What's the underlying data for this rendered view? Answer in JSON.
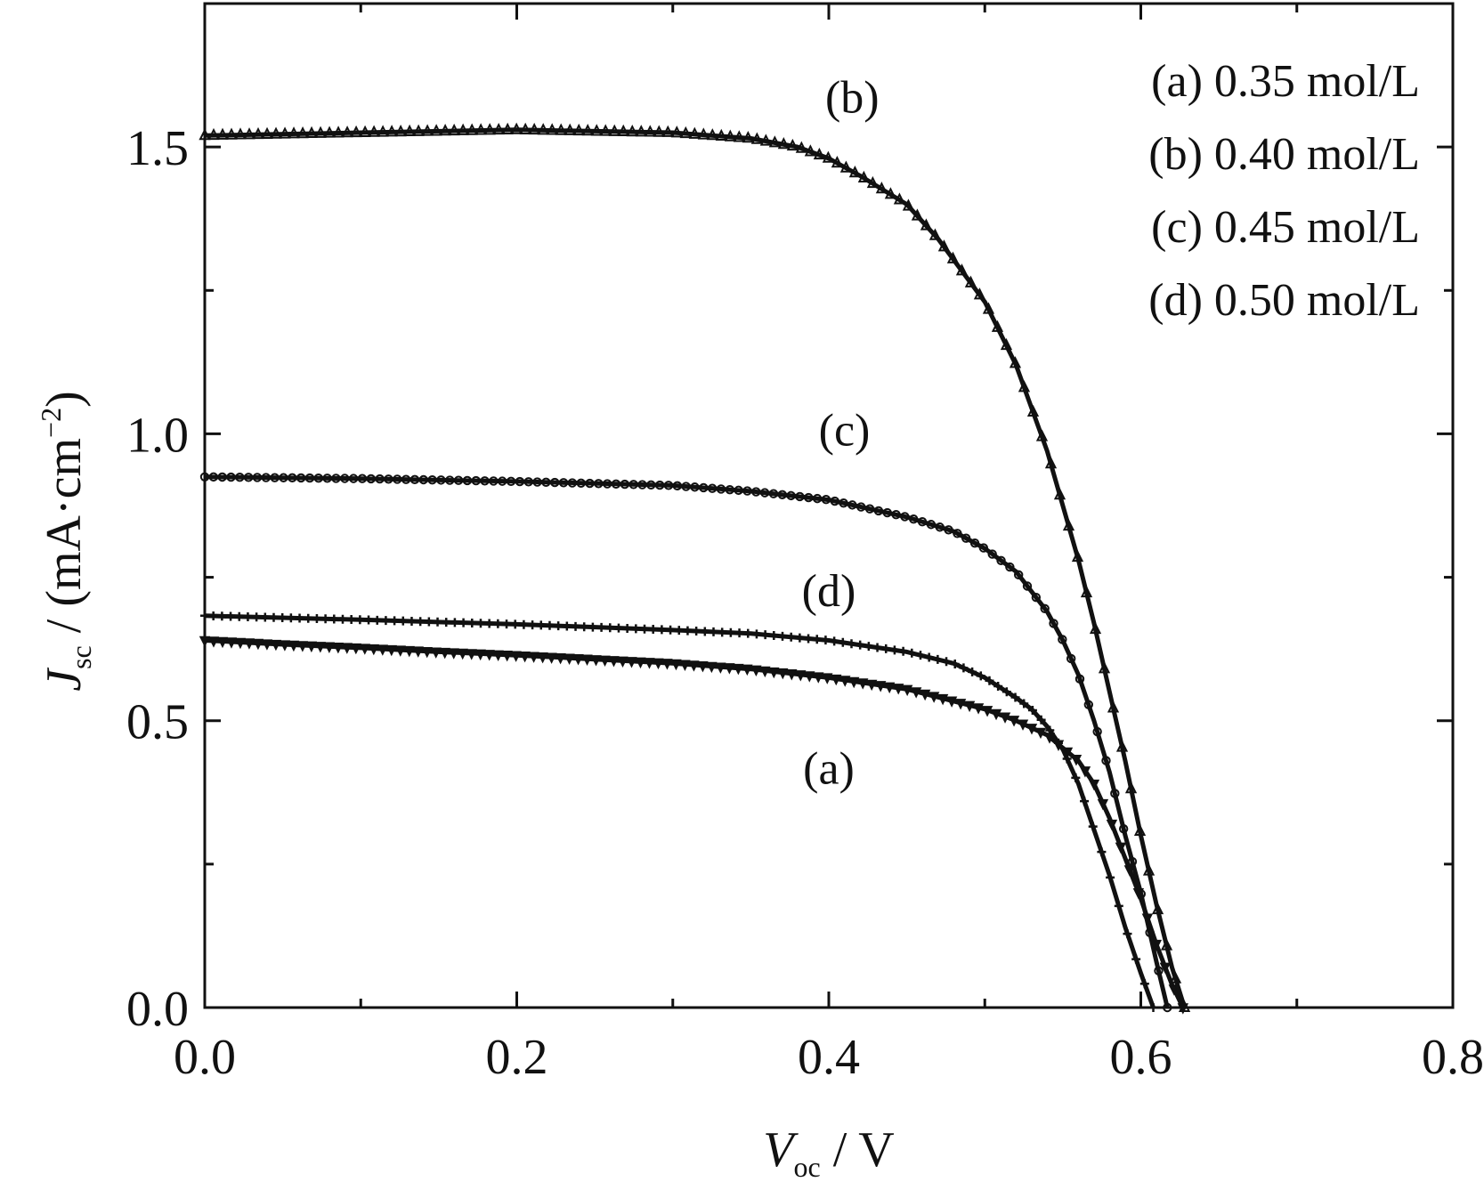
{
  "chart_data": {
    "type": "line",
    "xlabel": {
      "main": "V",
      "sub": "oc",
      "suffix": " / V"
    },
    "ylabel": {
      "main": "J",
      "sub": "sc",
      "suffix": " / (mA·cm",
      "sup": "−2",
      "close": ")"
    },
    "xlim": [
      0.0,
      0.8
    ],
    "ylim": [
      0.0,
      1.75
    ],
    "x_ticks": [
      0.0,
      0.2,
      0.4,
      0.6,
      0.8
    ],
    "x_tick_labels": [
      "0.0",
      "0.2",
      "0.4",
      "0.6",
      "0.8"
    ],
    "y_ticks": [
      0.0,
      0.5,
      1.0,
      1.5
    ],
    "y_tick_labels": [
      "0.0",
      "0.5",
      "1.0",
      "1.5"
    ],
    "x_minor_ticks": [
      0.1,
      0.3,
      0.5,
      0.7
    ],
    "y_minor_ticks": [
      0.25,
      0.75,
      1.25
    ],
    "grid": false,
    "legend_position": "top-right",
    "legend": [
      "(a) 0.35 mol/L",
      "(b) 0.40 mol/L",
      "(c) 0.45 mol/L",
      "(d) 0.50 mol/L"
    ],
    "series": [
      {
        "id": "a",
        "label": "(a)",
        "label_at": [
          0.4,
          0.39
        ],
        "marker": "down-triangle",
        "x": [
          0.0,
          0.05,
          0.1,
          0.15,
          0.2,
          0.25,
          0.3,
          0.35,
          0.4,
          0.45,
          0.5,
          0.52,
          0.54,
          0.56,
          0.57,
          0.58,
          0.59,
          0.6,
          0.61,
          0.62,
          0.627
        ],
        "y": [
          0.64,
          0.633,
          0.627,
          0.62,
          0.614,
          0.607,
          0.6,
          0.59,
          0.575,
          0.555,
          0.52,
          0.5,
          0.475,
          0.43,
          0.39,
          0.33,
          0.26,
          0.19,
          0.11,
          0.04,
          0.0
        ]
      },
      {
        "id": "b",
        "label": "(b)",
        "label_at": [
          0.415,
          1.56
        ],
        "marker": "triangle",
        "x": [
          0.0,
          0.1,
          0.2,
          0.3,
          0.35,
          0.38,
          0.4,
          0.42,
          0.45,
          0.47,
          0.5,
          0.52,
          0.54,
          0.56,
          0.57,
          0.58,
          0.59,
          0.6,
          0.61,
          0.62,
          0.628
        ],
        "y": [
          1.52,
          1.525,
          1.53,
          1.525,
          1.515,
          1.5,
          1.48,
          1.45,
          1.4,
          1.34,
          1.23,
          1.12,
          0.97,
          0.78,
          0.67,
          0.55,
          0.43,
          0.3,
          0.18,
          0.07,
          0.0
        ]
      },
      {
        "id": "c",
        "label": "(c)",
        "label_at": [
          0.41,
          0.98
        ],
        "marker": "circle",
        "x": [
          0.0,
          0.1,
          0.2,
          0.3,
          0.35,
          0.4,
          0.45,
          0.48,
          0.5,
          0.52,
          0.54,
          0.55,
          0.56,
          0.57,
          0.58,
          0.59,
          0.6,
          0.61,
          0.617
        ],
        "y": [
          0.925,
          0.922,
          0.917,
          0.91,
          0.9,
          0.885,
          0.855,
          0.83,
          0.8,
          0.76,
          0.69,
          0.64,
          0.58,
          0.5,
          0.41,
          0.3,
          0.2,
          0.08,
          0.0
        ]
      },
      {
        "id": "d",
        "label": "(d)",
        "label_at": [
          0.4,
          0.7
        ],
        "marker": "plus",
        "x": [
          0.0,
          0.1,
          0.2,
          0.3,
          0.35,
          0.4,
          0.45,
          0.48,
          0.5,
          0.52,
          0.53,
          0.54,
          0.55,
          0.56,
          0.57,
          0.58,
          0.59,
          0.6,
          0.608
        ],
        "y": [
          0.683,
          0.676,
          0.668,
          0.658,
          0.652,
          0.64,
          0.62,
          0.6,
          0.575,
          0.54,
          0.52,
          0.49,
          0.45,
          0.39,
          0.31,
          0.23,
          0.14,
          0.06,
          0.0
        ]
      }
    ]
  }
}
